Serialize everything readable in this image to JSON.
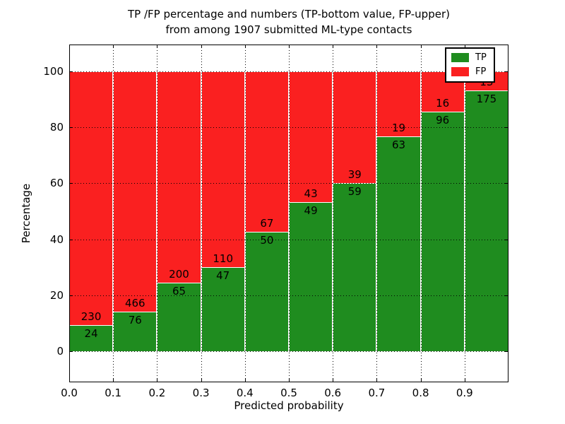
{
  "figure": {
    "title_line1": "TP /FP percentage and numbers (TP-bottom value, FP-upper)",
    "title_line2": "from among 1907 submitted ML-type contacts"
  },
  "chart_data": {
    "type": "bar",
    "stacked": true,
    "normalized_to_percent": 100,
    "title": "TP /FP percentage and numbers (TP-bottom value, FP-upper) from among 1907 submitted ML-type contacts",
    "xlabel": "Predicted probability",
    "ylabel": "Percentage",
    "categories": [
      "0.0",
      "0.1",
      "0.2",
      "0.3",
      "0.4",
      "0.5",
      "0.6",
      "0.7",
      "0.8",
      "0.9"
    ],
    "bin_width": 0.1,
    "series": [
      {
        "name": "TP",
        "color": "#1f8c1f",
        "counts": [
          24,
          76,
          65,
          47,
          50,
          49,
          59,
          63,
          96,
          175
        ],
        "pct": [
          9.4,
          14.0,
          24.5,
          29.9,
          42.7,
          53.3,
          60.2,
          76.8,
          85.7,
          93.1
        ]
      },
      {
        "name": "FP",
        "color": "#fa2020",
        "counts": [
          230,
          466,
          200,
          110,
          67,
          43,
          39,
          19,
          16,
          13
        ],
        "pct": [
          90.6,
          86.0,
          75.5,
          70.1,
          57.3,
          46.7,
          39.8,
          23.2,
          14.3,
          6.9
        ]
      }
    ],
    "total_contacts": 1907,
    "xticks": [
      "0.0",
      "0.1",
      "0.2",
      "0.3",
      "0.4",
      "0.5",
      "0.6",
      "0.7",
      "0.8",
      "0.9"
    ],
    "yticks": [
      0,
      20,
      40,
      60,
      80,
      100
    ],
    "ylim": [
      -11,
      110
    ],
    "grid": "dotted",
    "bar_edge_color": "#ffffff",
    "legend": {
      "position": "upper right",
      "entries": [
        "TP",
        "FP"
      ]
    }
  }
}
